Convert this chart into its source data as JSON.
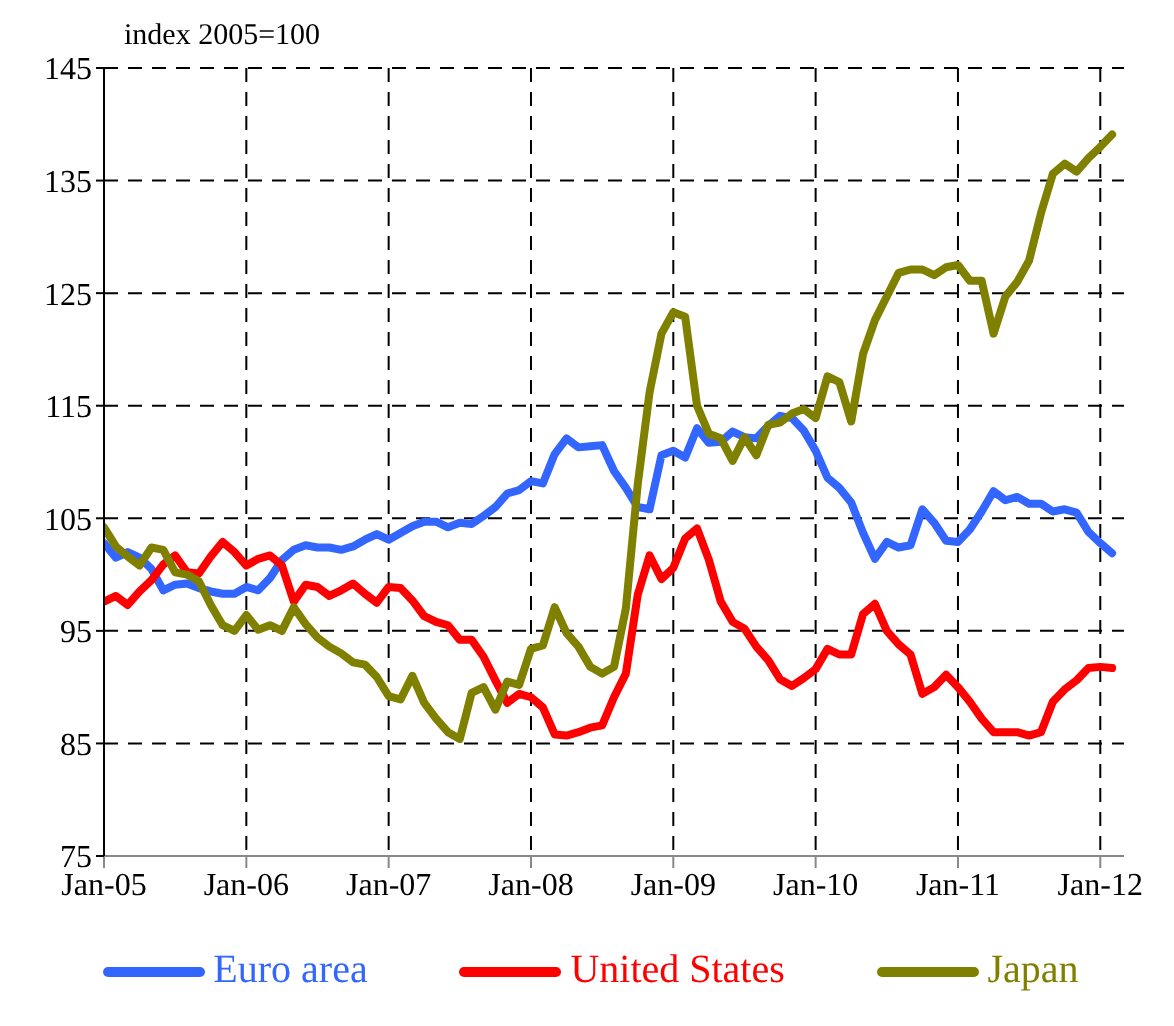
{
  "chart_data": {
    "type": "line",
    "ylabel": "index 2005=100",
    "x": [
      "2005-01",
      "2005-02",
      "2005-03",
      "2005-04",
      "2005-05",
      "2005-06",
      "2005-07",
      "2005-08",
      "2005-09",
      "2005-10",
      "2005-11",
      "2005-12",
      "2006-01",
      "2006-02",
      "2006-03",
      "2006-04",
      "2006-05",
      "2006-06",
      "2006-07",
      "2006-08",
      "2006-09",
      "2006-10",
      "2006-11",
      "2006-12",
      "2007-01",
      "2007-02",
      "2007-03",
      "2007-04",
      "2007-05",
      "2007-06",
      "2007-07",
      "2007-08",
      "2007-09",
      "2007-10",
      "2007-11",
      "2007-12",
      "2008-01",
      "2008-02",
      "2008-03",
      "2008-04",
      "2008-05",
      "2008-06",
      "2008-07",
      "2008-08",
      "2008-09",
      "2008-10",
      "2008-11",
      "2008-12",
      "2009-01",
      "2009-02",
      "2009-03",
      "2009-04",
      "2009-05",
      "2009-06",
      "2009-07",
      "2009-08",
      "2009-09",
      "2009-10",
      "2009-11",
      "2009-12",
      "2010-01",
      "2010-02",
      "2010-03",
      "2010-04",
      "2010-05",
      "2010-06",
      "2010-07",
      "2010-08",
      "2010-09",
      "2010-10",
      "2010-11",
      "2010-12",
      "2011-01",
      "2011-02",
      "2011-03",
      "2011-04",
      "2011-05",
      "2011-06",
      "2011-07",
      "2011-08",
      "2011-09",
      "2011-10",
      "2011-11",
      "2011-12",
      "2012-01",
      "2012-02"
    ],
    "series": [
      {
        "name": "Euro area",
        "color": "#3366ff",
        "values": [
          102.8,
          101.5,
          102,
          101.5,
          100.5,
          98.6,
          99.1,
          99.2,
          98.8,
          98.5,
          98.3,
          98.3,
          98.9,
          98.6,
          99.7,
          101.3,
          102.2,
          102.6,
          102.4,
          102.4,
          102.2,
          102.5,
          103.1,
          103.6,
          103.1,
          103.7,
          104.3,
          104.7,
          104.7,
          104.2,
          104.6,
          104.5,
          105.2,
          106,
          107.2,
          107.5,
          108.3,
          108.1,
          110.7,
          112.1,
          111.3,
          111.4,
          111.5,
          109.2,
          107.7,
          106,
          105.8,
          110.6,
          111,
          110.4,
          113,
          111.7,
          111.8,
          112.7,
          112.2,
          112.1,
          113.2,
          114.1,
          113.9,
          112.8,
          111,
          108.6,
          107.7,
          106.4,
          103.7,
          101.4,
          102.9,
          102.4,
          102.6,
          105.8,
          104.6,
          103,
          102.9,
          104,
          105.6,
          107.4,
          106.6,
          106.9,
          106.3,
          106.3,
          105.6,
          105.8,
          105.5,
          103.8,
          102.8,
          101.9
        ]
      },
      {
        "name": "United States",
        "color": "#ff0000",
        "values": [
          97.6,
          98.1,
          97.3,
          98.5,
          99.5,
          100.9,
          101.7,
          100.2,
          100.1,
          101.6,
          102.9,
          102,
          100.8,
          101.4,
          101.7,
          100.8,
          97.6,
          99.1,
          98.9,
          98.1,
          98.6,
          99.2,
          98.3,
          97.5,
          98.9,
          98.8,
          97.7,
          96.3,
          95.8,
          95.5,
          94.2,
          94.2,
          92.7,
          90.6,
          88.6,
          89.4,
          89.1,
          88.2,
          85.8,
          85.7,
          86,
          86.4,
          86.6,
          89.1,
          91.2,
          98.2,
          101.7,
          99.6,
          100.6,
          103.2,
          104.1,
          101.3,
          97.6,
          95.8,
          95.2,
          93.6,
          92.4,
          90.7,
          90.1,
          90.8,
          91.6,
          93.4,
          92.9,
          92.9,
          96.5,
          97.4,
          95,
          93.8,
          92.9,
          89.4,
          90,
          91.1,
          90,
          88.7,
          87.2,
          86,
          86,
          86,
          85.7,
          86,
          88.7,
          89.8,
          90.6,
          91.7,
          91.8,
          91.7
        ]
      },
      {
        "name": "Japan",
        "color": "#808000",
        "values": [
          104.2,
          102.5,
          101.6,
          100.8,
          102.4,
          102.2,
          100.2,
          100,
          99.4,
          97.3,
          95.5,
          95,
          96.4,
          95.1,
          95.5,
          95,
          97.1,
          95.6,
          94.4,
          93.6,
          93,
          92.2,
          92,
          90.9,
          89.2,
          88.9,
          91,
          88.6,
          87.2,
          86,
          85.4,
          89.5,
          90,
          88,
          90.5,
          90.2,
          93.4,
          93.7,
          97.1,
          94.8,
          93.6,
          91.8,
          91.2,
          91.8,
          97,
          108,
          116.2,
          121.4,
          123.3,
          122.9,
          115,
          112.5,
          112.1,
          110.1,
          112.2,
          110.6,
          113.3,
          113.5,
          114.3,
          114.7,
          113.9,
          117.6,
          117.1,
          113.6,
          119.6,
          122.6,
          124.7,
          126.8,
          127.1,
          127.1,
          126.6,
          127.3,
          127.5,
          126.1,
          126.1,
          121.4,
          124.7,
          126,
          127.9,
          132.1,
          135.6,
          136.5,
          135.8,
          137,
          138,
          139.1
        ]
      }
    ],
    "xlim": [
      "2005-01",
      "2012-03"
    ],
    "xticks": [
      {
        "value": "2005-01",
        "label": "Jan-05"
      },
      {
        "value": "2006-01",
        "label": "Jan-06"
      },
      {
        "value": "2007-01",
        "label": "Jan-07"
      },
      {
        "value": "2008-01",
        "label": "Jan-08"
      },
      {
        "value": "2009-01",
        "label": "Jan-09"
      },
      {
        "value": "2010-01",
        "label": "Jan-10"
      },
      {
        "value": "2011-01",
        "label": "Jan-11"
      },
      {
        "value": "2012-01",
        "label": "Jan-12"
      }
    ],
    "ylim": [
      75,
      145
    ],
    "yticks": [
      75,
      85,
      95,
      105,
      115,
      125,
      135,
      145
    ],
    "grid": true,
    "legend": "bottom",
    "marker": "none",
    "line_style": "solid"
  }
}
